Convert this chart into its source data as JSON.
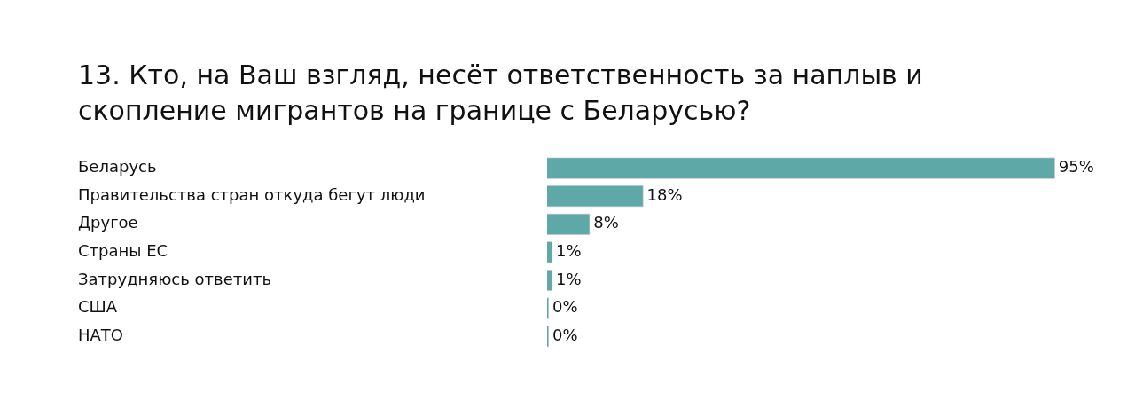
{
  "chart_data": {
    "type": "bar",
    "orientation": "horizontal",
    "title": "13. Кто, на Ваш взгляд, несёт ответственность за наплыв и скопление мигрантов на границе с Беларусью?",
    "categories": [
      "Беларусь",
      "Правительства стран откуда бегут люди",
      "Другое",
      "Страны ЕС",
      "Затрудняюсь ответить",
      "США",
      "НАТО"
    ],
    "values": [
      95,
      18,
      8,
      1,
      1,
      0,
      0
    ],
    "value_labels": [
      "95%",
      "18%",
      "8%",
      "1%",
      "1%",
      "0%",
      "0%"
    ],
    "color": "#5fa8a8"
  }
}
